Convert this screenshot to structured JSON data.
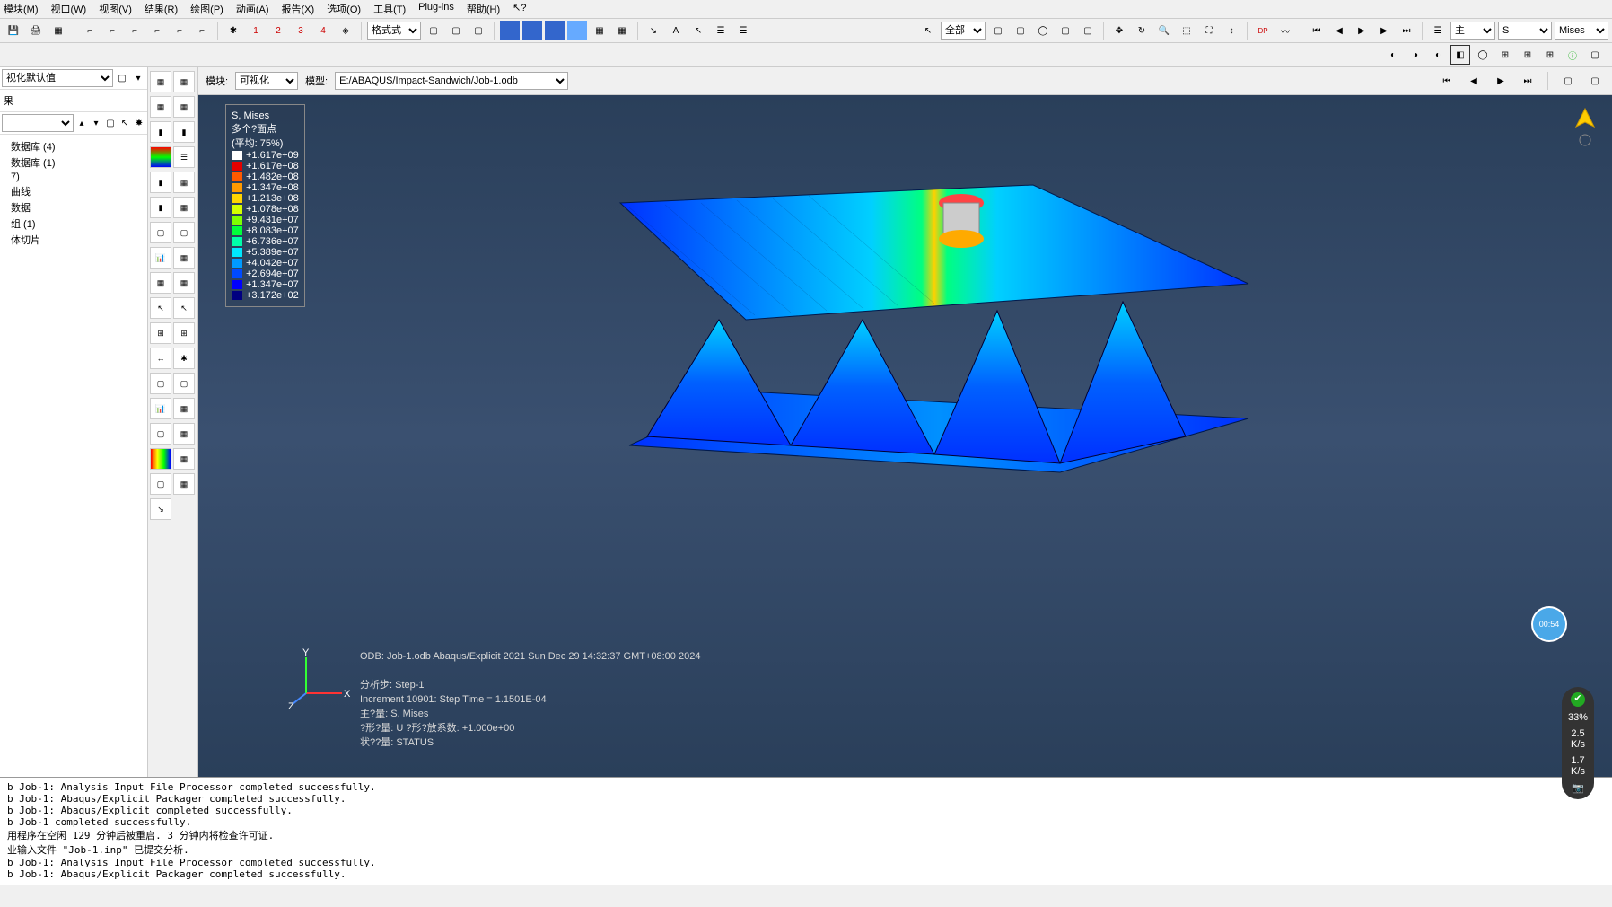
{
  "menu": {
    "items": [
      "模块(M)",
      "视口(W)",
      "视图(V)",
      "结果(R)",
      "绘图(P)",
      "动画(A)",
      "报告(X)",
      "选项(O)",
      "工具(T)",
      "Plug-ins",
      "帮助(H)"
    ]
  },
  "toolbar1": {
    "filter_label": "全部",
    "var_primary": "主",
    "var_s": "S",
    "var_mises": "Mises"
  },
  "left": {
    "preset": "视化默认值",
    "tab": "果",
    "tree": [
      "数据库 (4)",
      "数据库 (1)",
      "7)",
      "曲线",
      "数据",
      "组 (1)",
      "体切片"
    ]
  },
  "context": {
    "module_label": "模块:",
    "module_value": "可视化",
    "model_label": "模型:",
    "model_value": "E:/ABAQUS/Impact-Sandwich/Job-1.odb"
  },
  "legend": {
    "title": "S, Mises",
    "subtitle": "多个?面点",
    "avg": "(平均: 75%)",
    "entries": [
      {
        "c": "#ffffff",
        "v": "+1.617e+09"
      },
      {
        "c": "#e30000",
        "v": "+1.617e+08"
      },
      {
        "c": "#ff5a00",
        "v": "+1.482e+08"
      },
      {
        "c": "#ff9a00",
        "v": "+1.347e+08"
      },
      {
        "c": "#ffd400",
        "v": "+1.213e+08"
      },
      {
        "c": "#d4ff00",
        "v": "+1.078e+08"
      },
      {
        "c": "#7fff00",
        "v": "+9.431e+07"
      },
      {
        "c": "#00ff3a",
        "v": "+8.083e+07"
      },
      {
        "c": "#00ffa8",
        "v": "+6.736e+07"
      },
      {
        "c": "#00e8ff",
        "v": "+5.389e+07"
      },
      {
        "c": "#009aff",
        "v": "+4.042e+07"
      },
      {
        "c": "#004aff",
        "v": "+2.694e+07"
      },
      {
        "c": "#0000ff",
        "v": "+1.347e+07"
      },
      {
        "c": "#000080",
        "v": "+3.172e+02"
      }
    ]
  },
  "info": {
    "odb": "ODB: Job-1.odb    Abaqus/Explicit 2021    Sun Dec 29 14:32:37 GMT+08:00 2024",
    "step": "分析步: Step-1",
    "inc": "Increment    10901: Step Time =    1.1501E-04",
    "primary": "主?量: S, Mises",
    "deform": "?形?量: U   ?形?放系数: +1.000e+00",
    "status": "状??量: STATUS"
  },
  "triad": {
    "x": "X",
    "y": "Y",
    "z": "Z"
  },
  "timer": "00:54",
  "messages": "b Job-1: Analysis Input File Processor completed successfully.\nb Job-1: Abaqus/Explicit Packager completed successfully.\nb Job-1: Abaqus/Explicit completed successfully.\nb Job-1 completed successfully.\n用程序在空闲 129 分钟后被重启. 3 分钟内将检查许可证.\n业输入文件 \"Job-1.inp\" 已提交分析.\nb Job-1: Analysis Input File Processor completed successfully.\nb Job-1: Abaqus/Explicit Packager completed successfully.",
  "perf": {
    "pct": "33%",
    "up": "2.5",
    "dn": "1.7"
  }
}
